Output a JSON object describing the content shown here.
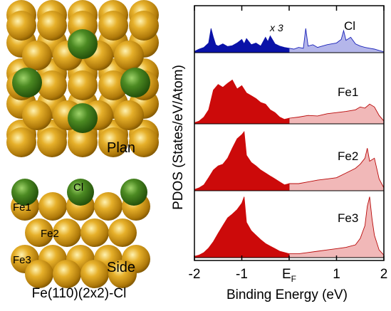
{
  "structure": {
    "caption": "Fe(110)(2x2)-Cl",
    "plan_label": "Plan",
    "side_label": "Side",
    "atom_labels": {
      "cl": "Cl",
      "fe1": "Fe1",
      "fe2": "Fe2",
      "fe3": "Fe3"
    },
    "colors": {
      "fe": "#d9a21c",
      "cl": "#3f7d1c"
    }
  },
  "chart_data": {
    "type": "area",
    "xlabel": "Binding Energy (eV)",
    "ylabel": "PDOS (States/eV/Atom)",
    "xlim": [
      -2,
      2
    ],
    "xtick_labels": [
      "-2",
      "-1",
      "E",
      "1",
      "2"
    ],
    "xtick_values": [
      -2,
      -1,
      0,
      1,
      2
    ],
    "fermi_subscript": "F",
    "occupied_range": [
      -2,
      0
    ],
    "unoccupied_range": [
      0,
      2
    ],
    "panels": [
      {
        "name": "Cl",
        "annotation": "x 3",
        "occupied_color": "#0a12a8",
        "unoccupied_color": "#b4b6ea",
        "line_color": "#1a22b8",
        "x": [
          -2.0,
          -1.9,
          -1.8,
          -1.7,
          -1.65,
          -1.6,
          -1.55,
          -1.5,
          -1.4,
          -1.3,
          -1.2,
          -1.1,
          -1.0,
          -0.95,
          -0.9,
          -0.85,
          -0.8,
          -0.7,
          -0.6,
          -0.5,
          -0.45,
          -0.4,
          -0.3,
          -0.2,
          -0.1,
          0.0,
          0.1,
          0.2,
          0.3,
          0.35,
          0.4,
          0.5,
          0.6,
          0.7,
          0.8,
          0.9,
          1.0,
          1.1,
          1.15,
          1.2,
          1.3,
          1.4,
          1.5,
          1.6,
          1.7,
          1.8,
          1.9,
          2.0
        ],
        "y": [
          0.03,
          0.08,
          0.12,
          0.22,
          0.55,
          0.35,
          0.18,
          0.15,
          0.2,
          0.14,
          0.16,
          0.22,
          0.3,
          0.2,
          0.32,
          0.25,
          0.18,
          0.22,
          0.15,
          0.35,
          0.25,
          0.38,
          0.2,
          0.15,
          0.12,
          0.1,
          0.08,
          0.12,
          0.1,
          0.55,
          0.15,
          0.18,
          0.12,
          0.15,
          0.18,
          0.2,
          0.22,
          0.3,
          0.5,
          0.28,
          0.35,
          0.2,
          0.15,
          0.12,
          0.1,
          0.08,
          0.05,
          0.02
        ]
      },
      {
        "name": "Fe1",
        "occupied_color": "#cc0a0a",
        "unoccupied_color": "#f1b8b8",
        "line_color": "#b80808",
        "x": [
          -2.0,
          -1.9,
          -1.8,
          -1.7,
          -1.6,
          -1.5,
          -1.4,
          -1.3,
          -1.2,
          -1.1,
          -1.0,
          -0.9,
          -0.8,
          -0.7,
          -0.6,
          -0.5,
          -0.4,
          -0.3,
          -0.2,
          -0.1,
          0.0,
          0.2,
          0.4,
          0.6,
          0.8,
          1.0,
          1.2,
          1.4,
          1.5,
          1.6,
          1.7,
          1.8,
          1.9,
          2.0
        ],
        "y": [
          0.02,
          0.05,
          0.12,
          0.25,
          0.6,
          0.7,
          0.65,
          0.72,
          0.78,
          0.62,
          0.68,
          0.55,
          0.5,
          0.45,
          0.38,
          0.35,
          0.25,
          0.2,
          0.12,
          0.08,
          0.1,
          0.12,
          0.15,
          0.14,
          0.18,
          0.2,
          0.22,
          0.25,
          0.3,
          0.28,
          0.35,
          0.3,
          0.15,
          0.05
        ]
      },
      {
        "name": "Fe2",
        "occupied_color": "#cc0a0a",
        "unoccupied_color": "#f1b8b8",
        "line_color": "#b80808",
        "x": [
          -2.0,
          -1.9,
          -1.8,
          -1.7,
          -1.6,
          -1.5,
          -1.4,
          -1.3,
          -1.2,
          -1.1,
          -1.0,
          -0.95,
          -0.9,
          -0.8,
          -0.7,
          -0.6,
          -0.5,
          -0.4,
          -0.3,
          -0.2,
          -0.1,
          0.0,
          0.2,
          0.4,
          0.6,
          0.8,
          1.0,
          1.2,
          1.4,
          1.5,
          1.6,
          1.65,
          1.7,
          1.8,
          1.9,
          2.0
        ],
        "y": [
          0.02,
          0.05,
          0.1,
          0.22,
          0.35,
          0.42,
          0.45,
          0.55,
          0.72,
          0.88,
          0.95,
          1.0,
          0.6,
          0.48,
          0.42,
          0.35,
          0.3,
          0.25,
          0.2,
          0.15,
          0.1,
          0.12,
          0.12,
          0.15,
          0.18,
          0.2,
          0.22,
          0.3,
          0.38,
          0.45,
          0.55,
          0.72,
          0.5,
          0.55,
          0.2,
          0.05
        ]
      },
      {
        "name": "Fe3",
        "occupied_color": "#cc0a0a",
        "unoccupied_color": "#f1b8b8",
        "line_color": "#b80808",
        "x": [
          -2.0,
          -1.9,
          -1.8,
          -1.7,
          -1.6,
          -1.5,
          -1.4,
          -1.3,
          -1.2,
          -1.1,
          -1.0,
          -0.95,
          -0.9,
          -0.8,
          -0.7,
          -0.6,
          -0.5,
          -0.4,
          -0.3,
          -0.2,
          -0.1,
          0.0,
          0.2,
          0.4,
          0.6,
          0.8,
          1.0,
          1.2,
          1.4,
          1.5,
          1.6,
          1.65,
          1.7,
          1.75,
          1.8,
          1.9,
          2.0
        ],
        "y": [
          0.02,
          0.04,
          0.08,
          0.15,
          0.25,
          0.38,
          0.5,
          0.62,
          0.68,
          0.75,
          0.85,
          0.95,
          0.55,
          0.42,
          0.35,
          0.28,
          0.22,
          0.18,
          0.14,
          0.1,
          0.08,
          0.06,
          0.06,
          0.08,
          0.1,
          0.12,
          0.14,
          0.16,
          0.2,
          0.3,
          0.5,
          0.8,
          0.95,
          0.6,
          0.35,
          0.12,
          0.04
        ]
      }
    ]
  }
}
